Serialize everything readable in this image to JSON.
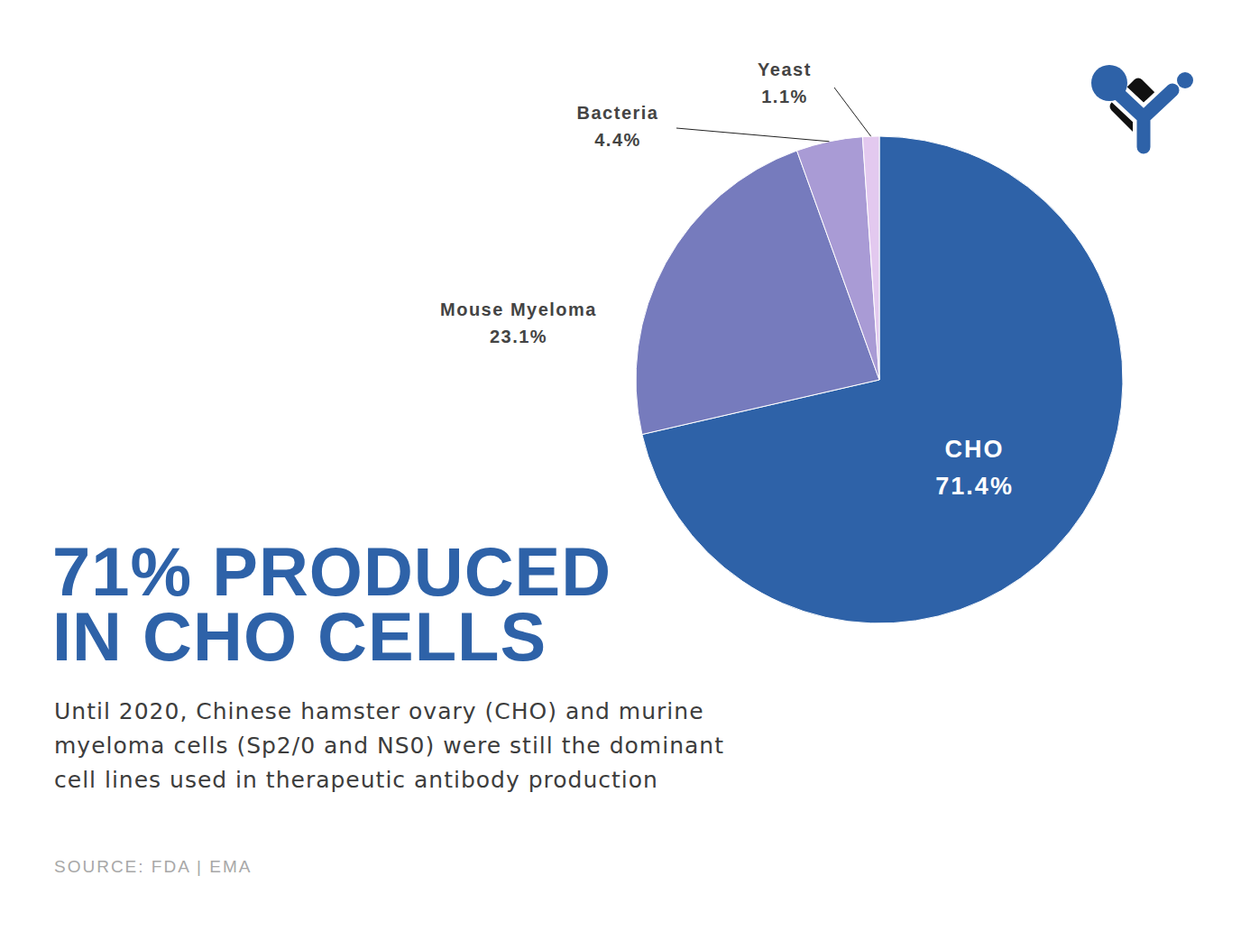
{
  "chart_data": {
    "type": "pie",
    "title": "71% PRODUCED IN CHO CELLS",
    "subtitle": "Until 2020, Chinese hamster ovary (CHO) and murine myeloma cells (Sp2/0 and NS0) were still the dominant cell lines used in therapeutic antibody production",
    "source": "SOURCE: FDA | EMA",
    "categories": [
      "CHO",
      "Mouse Myeloma",
      "Bacteria",
      "Yeast"
    ],
    "values": [
      71.4,
      23.1,
      4.4,
      1.1
    ],
    "value_labels": [
      "71.4%",
      "23.1%",
      "4.4%",
      "1.1%"
    ],
    "colors": [
      "#2e62a8",
      "#767bbd",
      "#a99bd5",
      "#e3c9ef"
    ],
    "data_labels": true
  }
}
